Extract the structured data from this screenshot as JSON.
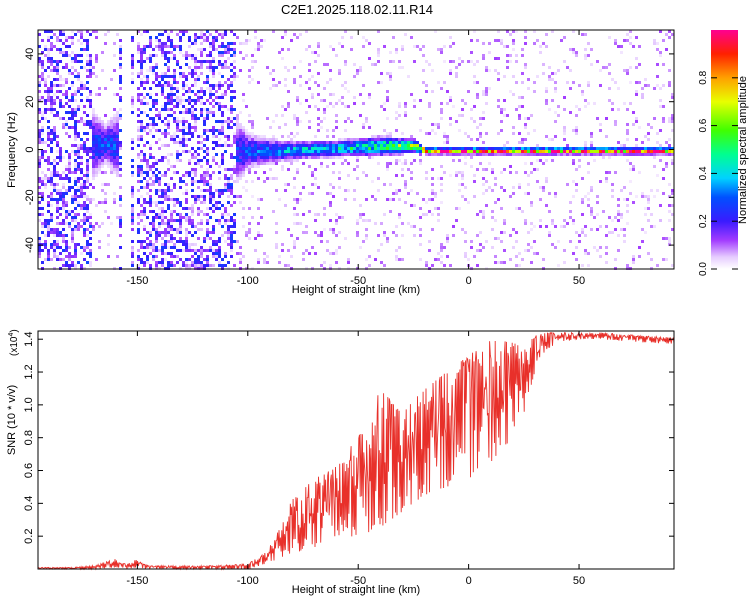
{
  "figure": {
    "title": "C2E1.2025.118.02.11.R14"
  },
  "chart_data": [
    {
      "type": "heatmap",
      "xlabel": "Height of straight line (km)",
      "ylabel": "Frequency (Hz)",
      "xlim": [
        -195,
        93
      ],
      "ylim": [
        -50,
        50
      ],
      "xticks": [
        -150,
        -100,
        -50,
        0,
        50
      ],
      "yticks": [
        -40,
        -20,
        0,
        20,
        40
      ],
      "colorbar": {
        "label": "Normalized spectral amplitude",
        "range": [
          0,
          1
        ],
        "ticks": [
          "0.0",
          "0.2",
          "0.4",
          "0.6",
          "0.8"
        ],
        "colormap": "rainbow (white-violet-blue-cyan-green-yellow-red-magenta)"
      },
      "profile": [
        {
          "x": -195,
          "center": 0,
          "width": 55,
          "peak": 0.25
        },
        {
          "x": -165,
          "center": 3,
          "width": 12,
          "peak": 0.3
        },
        {
          "x": -130,
          "center": 0,
          "width": 55,
          "peak": 0.25
        },
        {
          "x": -100,
          "center": 0,
          "width": 10,
          "peak": 0.3
        },
        {
          "x": -85,
          "center": 0,
          "width": 6,
          "peak": 0.4
        },
        {
          "x": -60,
          "center": 1,
          "width": 5,
          "peak": 0.45
        },
        {
          "x": -40,
          "center": 2,
          "width": 6,
          "peak": 0.55
        },
        {
          "x": -25,
          "center": 2,
          "width": 4,
          "peak": 0.7
        },
        {
          "x": -20,
          "center": 0,
          "width": 2,
          "peak": 0.95
        },
        {
          "x": 93,
          "center": 0,
          "width": 2,
          "peak": 0.95
        }
      ]
    },
    {
      "type": "line",
      "xlabel": "Height of straight line (km)",
      "ylabel": "SNR (10 * v/v)",
      "yscale_label": "(x10",
      "yscale_exp": "4",
      "xlim": [
        -195,
        93
      ],
      "ylim": [
        0,
        1.45
      ],
      "xticks": [
        -150,
        -100,
        -50,
        0,
        50
      ],
      "yticks": [
        0.2,
        0.4,
        0.6,
        0.8,
        1.0,
        1.2,
        1.4
      ],
      "ytick_labels": [
        "0.2",
        "0.4",
        "0.6",
        "0.8",
        "1.0",
        "1.2",
        "1.4"
      ],
      "color": "#e8302a",
      "series": [
        {
          "x": [
            -195,
            -180,
            -170,
            -160,
            -155,
            -150,
            -145,
            -120,
            -100,
            -92,
            -88,
            -80,
            -70,
            -60,
            -50,
            -40,
            -30,
            -20,
            -10,
            0,
            10,
            20,
            25,
            30,
            35,
            40,
            50,
            60,
            70,
            80,
            93
          ],
          "lower": [
            0.0,
            0.0,
            0.0,
            0.01,
            0.0,
            0.01,
            0.0,
            0.0,
            0.0,
            0.03,
            0.05,
            0.1,
            0.12,
            0.15,
            0.2,
            0.25,
            0.35,
            0.45,
            0.5,
            0.55,
            0.65,
            0.8,
            0.95,
            1.2,
            1.33,
            1.38,
            1.4,
            1.4,
            1.39,
            1.38,
            1.37
          ],
          "upper": [
            0.01,
            0.01,
            0.02,
            0.06,
            0.03,
            0.06,
            0.02,
            0.02,
            0.03,
            0.1,
            0.18,
            0.42,
            0.55,
            0.65,
            0.8,
            1.1,
            0.95,
            1.1,
            1.2,
            1.3,
            1.4,
            1.38,
            1.35,
            1.42,
            1.44,
            1.44,
            1.44,
            1.44,
            1.43,
            1.42,
            1.41
          ]
        }
      ]
    }
  ]
}
